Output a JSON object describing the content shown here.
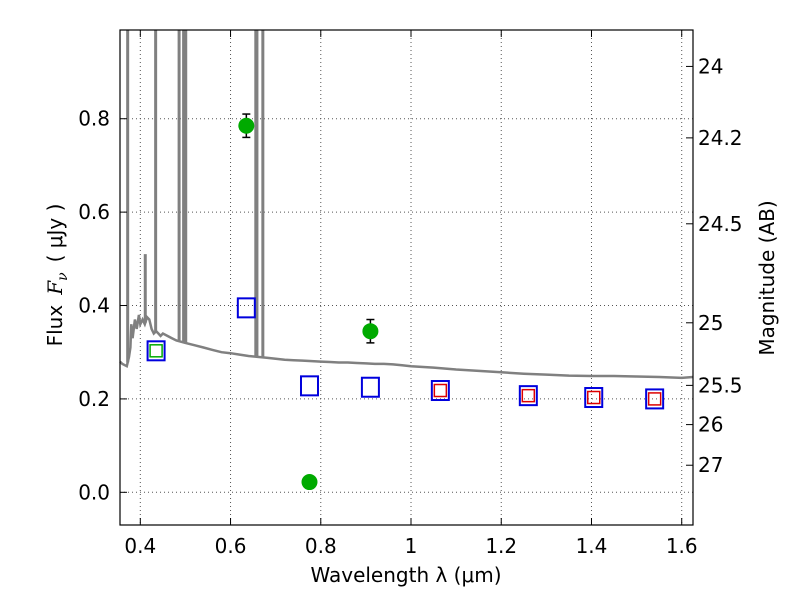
{
  "chart_data": {
    "type": "scatter",
    "xlabel": "Wavelength  λ (μm)",
    "ylabel_left_prefix": "Flux",
    "ylabel_left_var": "F",
    "ylabel_left_sub": "ν",
    "ylabel_left_units": "( μJy )",
    "ylabel_right": "Magnitude (AB)",
    "xlim": [
      0.355,
      1.625
    ],
    "ylim": [
      -0.07,
      0.99
    ],
    "grid": true,
    "x_ticks": [
      0.4,
      0.6,
      0.8,
      1.0,
      1.2,
      1.4,
      1.6
    ],
    "x_tick_labels": [
      "0.4",
      "0.6",
      "0.8",
      "1",
      "1.2",
      "1.4",
      "1.6"
    ],
    "y_ticks": [
      0.0,
      0.2,
      0.4,
      0.6,
      0.8
    ],
    "y_tick_labels": [
      "0.0",
      "0.2",
      "0.4",
      "0.6",
      "0.8"
    ],
    "mag_ticks": [
      {
        "label": "24",
        "flux": 0.912
      },
      {
        "label": "24.2",
        "flux": 0.759
      },
      {
        "label": "24.5",
        "flux": 0.575
      },
      {
        "label": "25",
        "flux": 0.363
      },
      {
        "label": "25.5",
        "flux": 0.229
      },
      {
        "label": "26",
        "flux": 0.145
      },
      {
        "label": "27",
        "flux": 0.058
      }
    ],
    "colors": {
      "model_line": "#808080",
      "observed": "#00aa00",
      "model_box": "#0000dd",
      "inner_box_green": "#00aa00",
      "inner_box_red": "#dd0000",
      "grid": "#555555"
    },
    "observed_points": [
      {
        "x": 0.635,
        "y": 0.785,
        "err": 0.025
      },
      {
        "x": 0.775,
        "y": 0.022,
        "err": 0.012
      },
      {
        "x": 0.91,
        "y": 0.345,
        "err": 0.025
      }
    ],
    "model_boxes": [
      {
        "x": 0.435,
        "y": 0.303,
        "inner": "green"
      },
      {
        "x": 0.635,
        "y": 0.395,
        "inner": "none"
      },
      {
        "x": 0.775,
        "y": 0.228,
        "inner": "none"
      },
      {
        "x": 0.91,
        "y": 0.225,
        "inner": "none"
      },
      {
        "x": 1.065,
        "y": 0.218,
        "inner": "red"
      },
      {
        "x": 1.26,
        "y": 0.207,
        "inner": "red"
      },
      {
        "x": 1.405,
        "y": 0.203,
        "inner": "red"
      },
      {
        "x": 1.54,
        "y": 0.2,
        "inner": "red"
      }
    ],
    "model_spectrum": [
      [
        0.355,
        0.28
      ],
      [
        0.36,
        0.275
      ],
      [
        0.37,
        0.27
      ],
      [
        0.375,
        0.29
      ],
      [
        0.378,
        0.31
      ],
      [
        0.38,
        0.36
      ],
      [
        0.383,
        0.33
      ],
      [
        0.388,
        0.37
      ],
      [
        0.392,
        0.35
      ],
      [
        0.397,
        0.38
      ],
      [
        0.4,
        0.36
      ],
      [
        0.405,
        0.37
      ],
      [
        0.41,
        0.36
      ],
      [
        0.415,
        0.375
      ],
      [
        0.42,
        0.37
      ],
      [
        0.425,
        0.35
      ],
      [
        0.43,
        0.34
      ],
      [
        0.435,
        0.345
      ],
      [
        0.44,
        0.34
      ],
      [
        0.445,
        0.335
      ],
      [
        0.45,
        0.34
      ],
      [
        0.46,
        0.335
      ],
      [
        0.47,
        0.33
      ],
      [
        0.48,
        0.325
      ],
      [
        0.5,
        0.32
      ],
      [
        0.52,
        0.315
      ],
      [
        0.54,
        0.31
      ],
      [
        0.56,
        0.305
      ],
      [
        0.58,
        0.3
      ],
      [
        0.6,
        0.298
      ],
      [
        0.62,
        0.295
      ],
      [
        0.64,
        0.292
      ],
      [
        0.66,
        0.29
      ],
      [
        0.68,
        0.288
      ],
      [
        0.7,
        0.286
      ],
      [
        0.72,
        0.284
      ],
      [
        0.74,
        0.283
      ],
      [
        0.76,
        0.282
      ],
      [
        0.78,
        0.281
      ],
      [
        0.8,
        0.28
      ],
      [
        0.82,
        0.279
      ],
      [
        0.84,
        0.278
      ],
      [
        0.86,
        0.278
      ],
      [
        0.88,
        0.277
      ],
      [
        0.9,
        0.276
      ],
      [
        0.92,
        0.275
      ],
      [
        0.94,
        0.275
      ],
      [
        0.96,
        0.274
      ],
      [
        0.98,
        0.272
      ],
      [
        1.0,
        0.27
      ],
      [
        1.05,
        0.267
      ],
      [
        1.1,
        0.263
      ],
      [
        1.15,
        0.26
      ],
      [
        1.2,
        0.257
      ],
      [
        1.25,
        0.254
      ],
      [
        1.3,
        0.252
      ],
      [
        1.35,
        0.25
      ],
      [
        1.4,
        0.249
      ],
      [
        1.45,
        0.249
      ],
      [
        1.5,
        0.248
      ],
      [
        1.55,
        0.247
      ],
      [
        1.6,
        0.245
      ],
      [
        1.625,
        0.247
      ]
    ],
    "emission_lines": [
      {
        "x": 0.372,
        "peak": 1.1
      },
      {
        "x": 0.411,
        "peak": 0.51
      },
      {
        "x": 0.434,
        "peak": 1.1
      },
      {
        "x": 0.486,
        "peak": 1.1
      },
      {
        "x": 0.496,
        "peak": 1.1
      },
      {
        "x": 0.5007,
        "peak": 1.1
      },
      {
        "x": 0.656,
        "peak": 1.1
      },
      {
        "x": 0.6585,
        "peak": 1.1
      },
      {
        "x": 0.6716,
        "peak": 1.1
      }
    ]
  }
}
